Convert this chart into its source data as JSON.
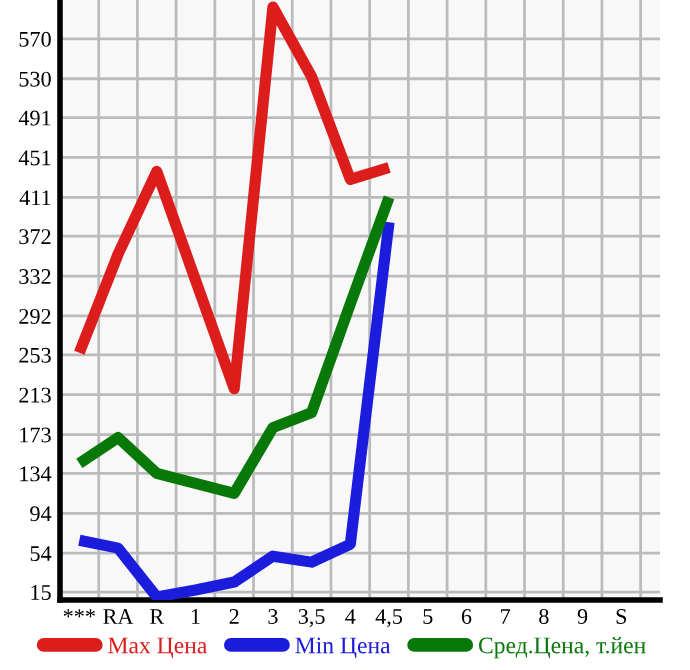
{
  "chart_data": {
    "type": "line",
    "categories": [
      "***",
      "RA",
      "R",
      "1",
      "2",
      "3",
      "3,5",
      "4",
      "4,5",
      "5",
      "6",
      "7",
      "8",
      "9",
      "S"
    ],
    "series": [
      {
        "name": "Max Цена",
        "color": "#dd1c1c",
        "values": [
          255,
          354,
          437,
          328,
          219,
          602,
          532,
          429,
          441,
          null,
          null,
          null,
          null,
          null,
          null
        ]
      },
      {
        "name": "Min Цена",
        "color": "#1c1cdd",
        "values": [
          67,
          59,
          10,
          17,
          25,
          51,
          45,
          63,
          386,
          null,
          null,
          null,
          null,
          null,
          null
        ]
      },
      {
        "name": "Сред.Цена, т.йен",
        "color": "#087808",
        "values": [
          144,
          170,
          134,
          124,
          114,
          180,
          195,
          304,
          411,
          null,
          null,
          null,
          null,
          null,
          null
        ]
      }
    ],
    "ylim": [
      7,
      609
    ],
    "yticks": [
      15,
      54,
      94,
      134,
      173,
      213,
      253,
      292,
      332,
      372,
      411,
      451,
      491,
      530,
      570
    ],
    "grid": true,
    "legend": "bottom",
    "marker": "none",
    "line_style": "solid"
  }
}
